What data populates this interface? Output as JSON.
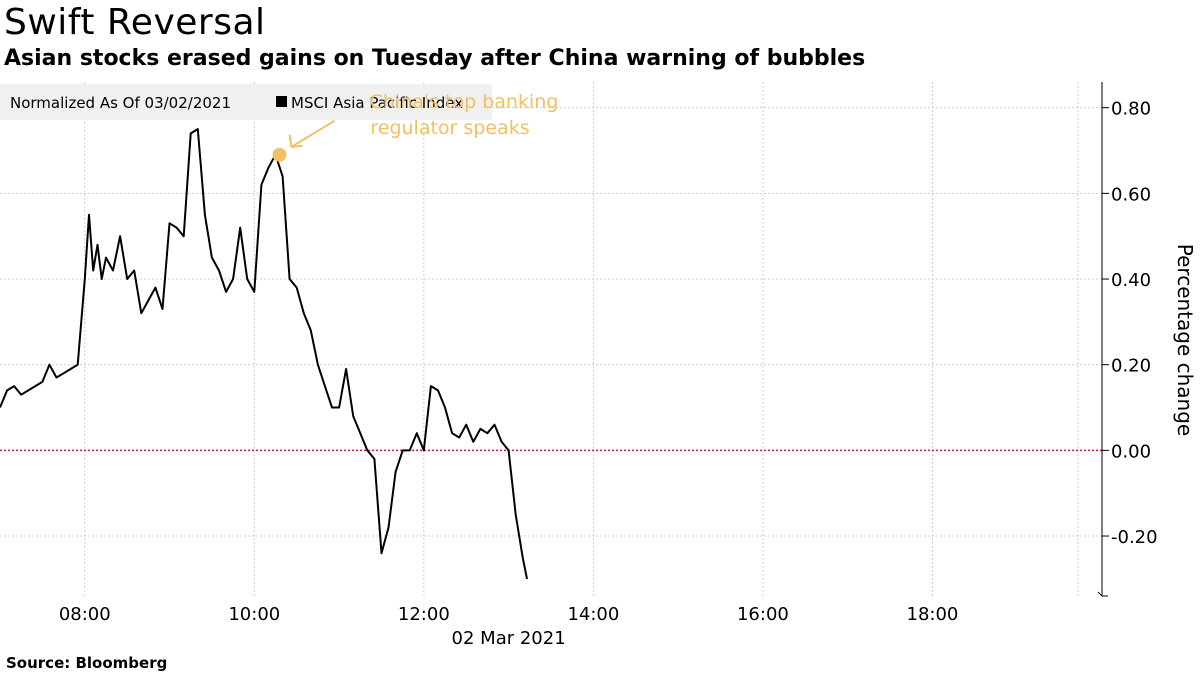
{
  "header": {
    "title": "Swift Reversal",
    "subtitle": "Asian stocks erased gains on Tuesday after China warning of bubbles"
  },
  "footer": {
    "source": "Source: Bloomberg"
  },
  "colors": {
    "line": "#000000",
    "zero_line": "#cc1f2a",
    "annotation": "#f2c063",
    "grid": "#cfcfcf",
    "legend_bg": "#f0f0f0"
  },
  "chart_data": {
    "type": "line",
    "title": "Swift Reversal",
    "subtitle": "Asian stocks erased gains on Tuesday after China warning of bubbles",
    "legend": {
      "note": "Normalized As Of 03/02/2021",
      "entries": [
        "MSCI Asia Pacific Index"
      ],
      "placement": "top-left"
    },
    "xlabel": "02 Mar 2021",
    "ylabel": "Percentage change",
    "x_ticks": [
      "08:00",
      "10:00",
      "12:00",
      "14:00",
      "16:00",
      "18:00"
    ],
    "y_ticks": [
      0.8,
      0.6,
      0.4,
      0.2,
      0.0,
      -0.2
    ],
    "y_tick_labels": [
      "0.80",
      "0.60",
      "0.40",
      "0.20",
      "0.00",
      "-0.20"
    ],
    "xlim": [
      "07:00",
      "20:00"
    ],
    "ylim": [
      -0.34,
      0.86
    ],
    "grid": true,
    "y_axis_side": "right",
    "series": [
      {
        "name": "MSCI Asia Pacific Index",
        "x": [
          "07:00",
          "07:05",
          "07:10",
          "07:15",
          "07:20",
          "07:25",
          "07:30",
          "07:35",
          "07:40",
          "07:45",
          "07:50",
          "07:55",
          "08:00",
          "08:03",
          "08:06",
          "08:09",
          "08:12",
          "08:15",
          "08:20",
          "08:25",
          "08:30",
          "08:35",
          "08:40",
          "08:45",
          "08:50",
          "08:55",
          "09:00",
          "09:05",
          "09:10",
          "09:15",
          "09:20",
          "09:25",
          "09:30",
          "09:35",
          "09:40",
          "09:45",
          "09:50",
          "09:55",
          "10:00",
          "10:05",
          "10:10",
          "10:15",
          "10:20",
          "10:25",
          "10:30",
          "10:35",
          "10:40",
          "10:45",
          "10:50",
          "10:55",
          "11:00",
          "11:05",
          "11:10",
          "11:15",
          "11:20",
          "11:25",
          "11:30",
          "11:35",
          "11:40",
          "11:45",
          "11:50",
          "11:55",
          "12:00",
          "12:05",
          "12:10",
          "12:15",
          "12:20",
          "12:25",
          "12:30",
          "12:35",
          "12:40",
          "12:45",
          "12:50",
          "12:55",
          "13:00",
          "13:05",
          "13:10",
          "13:13"
        ],
        "values": [
          0.1,
          0.14,
          0.15,
          0.13,
          0.14,
          0.15,
          0.16,
          0.2,
          0.17,
          0.18,
          0.19,
          0.2,
          0.4,
          0.55,
          0.42,
          0.48,
          0.4,
          0.45,
          0.42,
          0.5,
          0.4,
          0.42,
          0.32,
          0.35,
          0.38,
          0.33,
          0.53,
          0.52,
          0.5,
          0.74,
          0.75,
          0.55,
          0.45,
          0.42,
          0.37,
          0.4,
          0.52,
          0.4,
          0.37,
          0.62,
          0.66,
          0.69,
          0.64,
          0.4,
          0.38,
          0.32,
          0.28,
          0.2,
          0.15,
          0.1,
          0.1,
          0.19,
          0.08,
          0.04,
          0.0,
          -0.02,
          -0.24,
          -0.18,
          -0.05,
          0.0,
          0.0,
          0.04,
          0.0,
          0.15,
          0.14,
          0.1,
          0.04,
          0.03,
          0.06,
          0.02,
          0.05,
          0.04,
          0.06,
          0.02,
          0.0,
          -0.15,
          -0.25,
          -0.3
        ]
      }
    ],
    "annotations": [
      {
        "text_line1": "China's top banking",
        "text_line2": "regulator speaks",
        "x": "10:15",
        "y": 0.69
      }
    ]
  }
}
